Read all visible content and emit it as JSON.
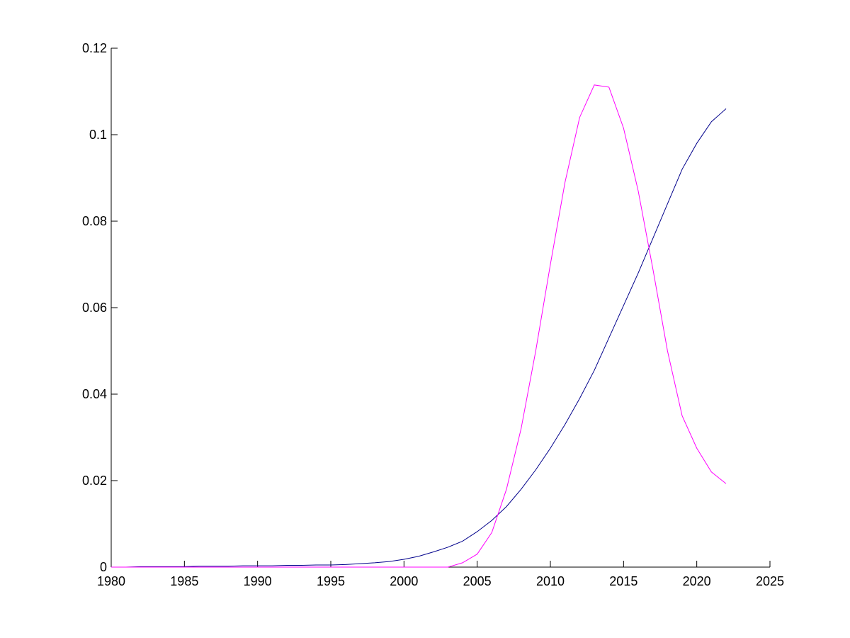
{
  "chart_data": {
    "type": "line",
    "x": [
      1980,
      1981,
      1982,
      1983,
      1984,
      1985,
      1986,
      1987,
      1988,
      1989,
      1990,
      1991,
      1992,
      1993,
      1994,
      1995,
      1996,
      1997,
      1998,
      1999,
      2000,
      2001,
      2002,
      2003,
      2004,
      2005,
      2006,
      2007,
      2008,
      2009,
      2010,
      2011,
      2012,
      2013,
      2014,
      2015,
      2016,
      2017,
      2018,
      2019,
      2020,
      2021,
      2022
    ],
    "series": [
      {
        "color": "#00008b",
        "values": [
          0,
          0,
          0.0001,
          0.0001,
          0.0001,
          0.0001,
          0.0002,
          0.0002,
          0.0002,
          0.0003,
          0.0003,
          0.0003,
          0.0004,
          0.0004,
          0.0005,
          0.0005,
          0.0006,
          0.0008,
          0.001,
          0.0013,
          0.0018,
          0.0025,
          0.0035,
          0.0046,
          0.006,
          0.0082,
          0.0108,
          0.014,
          0.018,
          0.0225,
          0.0275,
          0.033,
          0.039,
          0.0455,
          0.053,
          0.0605,
          0.068,
          0.076,
          0.084,
          0.092,
          0.098,
          0.103,
          0.106
        ]
      },
      {
        "color": "#ff00ff",
        "values": [
          0,
          0,
          0,
          0,
          0,
          0,
          0,
          0,
          0,
          0,
          0,
          0,
          0,
          0,
          0,
          0,
          0,
          0,
          0,
          0,
          0,
          0,
          0,
          0,
          0.001,
          0.003,
          0.008,
          0.018,
          0.032,
          0.05,
          0.07,
          0.089,
          0.104,
          0.1115,
          0.111,
          0.1015,
          0.087,
          0.069,
          0.05,
          0.035,
          0.0275,
          0.022,
          0.0193
        ]
      }
    ],
    "xlim": [
      1980,
      2025
    ],
    "xticks": [
      1980,
      1985,
      1990,
      1995,
      2000,
      2005,
      2010,
      2015,
      2020,
      2025
    ],
    "ylim": [
      0,
      0.12
    ],
    "yticks": [
      0,
      0.02,
      0.04,
      0.06,
      0.08,
      0.1,
      0.12
    ]
  }
}
